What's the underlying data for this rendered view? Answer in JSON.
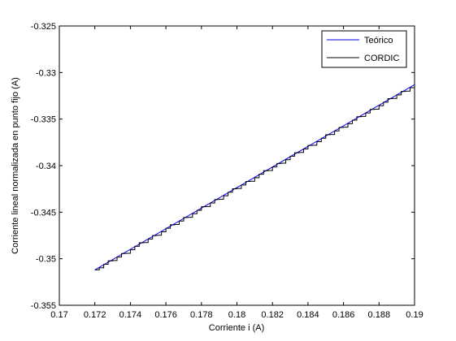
{
  "chart_data": {
    "type": "line",
    "title": "",
    "xlabel": "Corriente i (A)",
    "ylabel": "Corriente lineal normalizada en punto fijo (A)",
    "xlim": [
      0.17,
      0.19
    ],
    "ylim": [
      -0.355,
      -0.325
    ],
    "xticks": [
      0.17,
      0.172,
      0.174,
      0.176,
      0.178,
      0.18,
      0.182,
      0.184,
      0.186,
      0.188,
      0.19
    ],
    "xtick_labels": [
      "0.17",
      "0.172",
      "0.174",
      "0.176",
      "0.178",
      "0.18",
      "0.182",
      "0.184",
      "0.186",
      "0.188",
      "0.19"
    ],
    "yticks": [
      -0.355,
      -0.35,
      -0.345,
      -0.34,
      -0.335,
      -0.33,
      -0.325
    ],
    "ytick_labels": [
      "-0.355",
      "-0.35",
      "-0.345",
      "-0.34",
      "-0.335",
      "-0.33",
      "-0.325"
    ],
    "grid": false,
    "legend_position": "top-right",
    "series": [
      {
        "name": "Teórico",
        "color": "#0000ff",
        "style": "line",
        "x": [
          0.172,
          0.19
        ],
        "y": [
          -0.3512,
          -0.3313
        ]
      },
      {
        "name": "CORDIC",
        "color": "#000000",
        "style": "staircase",
        "x_start": 0.172,
        "x_end": 0.19,
        "step_x": 0.00025,
        "start_y": -0.3512,
        "end_y": -0.3313
      }
    ]
  }
}
